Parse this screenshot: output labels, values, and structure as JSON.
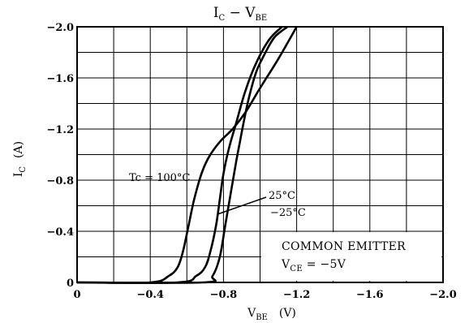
{
  "chart_data": {
    "type": "line",
    "title": {
      "main": "I",
      "main_sub": "C",
      "sep": " − ",
      "second": "V",
      "second_sub": "BE"
    },
    "xlabel": {
      "main": "V",
      "sub": "BE",
      "unit": "(V)"
    },
    "ylabel": {
      "main": "I",
      "sub": "C",
      "unit": "(A)"
    },
    "xlim": [
      0,
      -2.0
    ],
    "ylim": [
      0,
      -2.0
    ],
    "x_tick_labels": [
      "0",
      "−0.4",
      "−0.8",
      "−1.2",
      "−1.6",
      "−2.0"
    ],
    "y_tick_labels": [
      "0",
      "−0.4",
      "−0.8",
      "−1.2",
      "−1.6",
      "−2.0"
    ],
    "grid": true,
    "series": [
      {
        "name": "Tc = 100°C",
        "x": [
          0,
          -0.4,
          -0.5,
          -0.55,
          -0.58,
          -0.61,
          -0.64,
          -0.68,
          -0.72,
          -0.78,
          -0.85,
          -0.92,
          -1.0,
          -1.1,
          -1.2
        ],
        "y": [
          0,
          0,
          -0.05,
          -0.12,
          -0.25,
          -0.45,
          -0.65,
          -0.85,
          -0.98,
          -1.1,
          -1.2,
          -1.33,
          -1.52,
          -1.75,
          -2.0
        ]
      },
      {
        "name": "25°C",
        "x": [
          0,
          -0.55,
          -0.65,
          -0.7,
          -0.73,
          -0.76,
          -0.78,
          -0.8,
          -0.83,
          -0.87,
          -0.92,
          -0.98,
          -1.05,
          -1.12
        ],
        "y": [
          0,
          0,
          -0.05,
          -0.12,
          -0.25,
          -0.45,
          -0.65,
          -0.85,
          -1.05,
          -1.25,
          -1.5,
          -1.72,
          -1.9,
          -2.0
        ]
      },
      {
        "name": "−25°C",
        "x": [
          0,
          -0.69,
          -0.74,
          -0.78,
          -0.81,
          -0.84,
          -0.87,
          -0.89,
          -0.91,
          -0.94,
          -0.98,
          -1.03,
          -1.08,
          -1.15
        ],
        "y": [
          0,
          0,
          -0.05,
          -0.2,
          -0.45,
          -0.7,
          -0.95,
          -1.1,
          -1.25,
          -1.45,
          -1.65,
          -1.8,
          -1.92,
          -2.0
        ]
      }
    ],
    "annotations": {
      "tc100": "Tc = 100°C",
      "t25": "25°C",
      "tm25": "−25°C",
      "common_emitter": "COMMON EMITTER",
      "vce": {
        "main": "V",
        "sub": "CE",
        "value": " = −5V"
      }
    }
  }
}
